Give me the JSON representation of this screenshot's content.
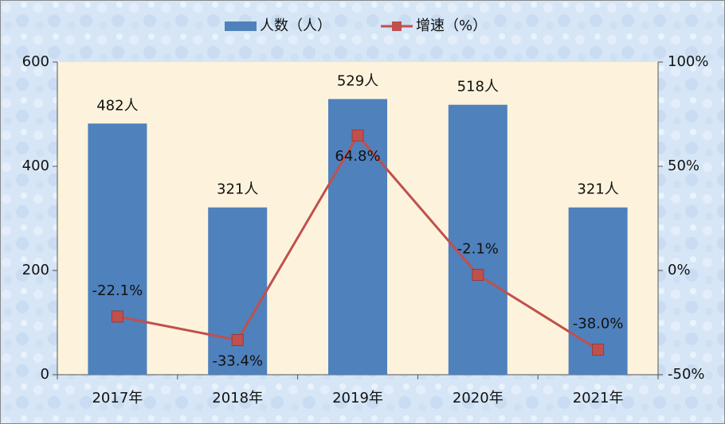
{
  "chart_data": {
    "type": "bar",
    "categories": [
      "2017年",
      "2018年",
      "2019年",
      "2020年",
      "2021年"
    ],
    "series": [
      {
        "name": "人数（人）",
        "type": "bar",
        "color": "#4f81bd",
        "values": [
          482,
          321,
          529,
          518,
          321
        ],
        "value_labels": [
          "482人",
          "321人",
          "529人",
          "518人",
          "321人"
        ]
      },
      {
        "name": "增速（%）",
        "type": "line",
        "axis": "y2",
        "color": "#c0504d",
        "values": [
          -22.1,
          -33.4,
          64.8,
          -2.1,
          -38.0
        ],
        "value_labels": [
          "-22.1%",
          "-33.4%",
          "64.8%",
          "-2.1%",
          "-38.0%"
        ]
      }
    ],
    "ylim": [
      0,
      600
    ],
    "yticks": [
      0,
      200,
      400,
      600
    ],
    "y2lim": [
      -50,
      100
    ],
    "y2ticks": [
      {
        "value": -50,
        "label": "-50%"
      },
      {
        "value": 0,
        "label": "0%"
      },
      {
        "value": 50,
        "label": "50%"
      },
      {
        "value": 100,
        "label": "100%"
      }
    ],
    "legend": "top"
  }
}
